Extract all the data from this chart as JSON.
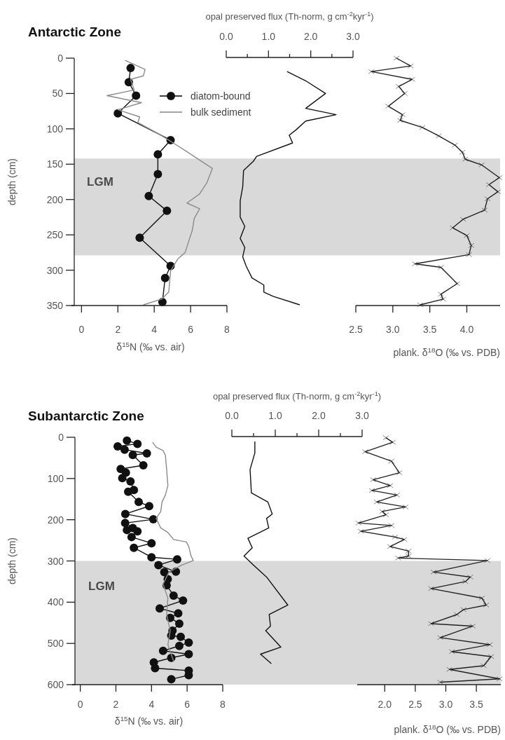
{
  "chart_data": [
    {
      "type": "line",
      "title": "Antarctic Zone",
      "xlabel": "δ$^{15}$N (‰ vs. air)",
      "ylabel": "depth (cm)",
      "xlim": [
        -0.4,
        8
      ],
      "xticks": [
        0,
        2,
        4,
        6,
        8
      ],
      "ylim": [
        350,
        0
      ],
      "yticks": [
        0,
        50,
        100,
        150,
        200,
        250,
        300,
        350
      ],
      "legend": "top right",
      "bands": [
        {
          "axis": "y",
          "from": 142,
          "to": 279,
          "label": "LGM",
          "color": "#d9d9d9"
        }
      ],
      "series": [
        {
          "name": "diatom-bound",
          "color": "#111111",
          "marker": "circle",
          "x": [
            2.7,
            2.6,
            3.0,
            2.0,
            4.9,
            4.2,
            4.2,
            3.7,
            4.7,
            3.2,
            4.9,
            4.6,
            4.45
          ],
          "values": [
            14,
            34,
            53,
            78,
            116,
            136,
            164,
            195,
            216,
            254,
            294,
            311,
            345
          ]
        },
        {
          "name": "bulk sediment",
          "color": "#8c8c8c",
          "marker": "none",
          "x": [
            2.4,
            3.5,
            3.4,
            2.7,
            2.9,
            1.4,
            3.3,
            2.0,
            3.2,
            3.1,
            4.3,
            5.6,
            7.2,
            6.9,
            6.5,
            5.8,
            6.5,
            6.2,
            6.1,
            5.7,
            5.3,
            4.9,
            4.8,
            4.4,
            3.4
          ],
          "values": [
            3,
            16,
            25,
            30,
            45,
            53,
            63,
            73,
            83,
            91,
            108,
            129,
            156,
            176,
            192,
            205,
            213,
            227,
            243,
            275,
            284,
            301,
            331,
            341,
            349
          ]
        }
      ]
    },
    {
      "type": "line",
      "xlabel": "opal preserved flux (Th-norm, g cm$^{-2}$kyr$^{-1}$)",
      "xlim": [
        0,
        3
      ],
      "xticks": [
        {
          "value": 0,
          "label": "0.0"
        },
        {
          "value": 0.5,
          "label": null
        },
        {
          "value": 1,
          "label": "1.0"
        },
        {
          "value": 1.5,
          "label": null
        },
        {
          "value": 2,
          "label": "2.0"
        },
        {
          "value": 2.5,
          "label": null
        },
        {
          "value": 3,
          "label": "3.0"
        }
      ],
      "ylim": [
        350,
        0
      ],
      "tick_labels": "x",
      "bands": [
        {
          "axis": "y",
          "from": 142,
          "to": 279,
          "color": "#d9d9d9"
        }
      ],
      "series": [
        {
          "color": "#111111",
          "marker": "none",
          "x": [
            1.44,
            1.88,
            2.35,
            1.88,
            2.6,
            1.88,
            1.66,
            1.49,
            1.57,
            0.72,
            0.64,
            0.41,
            0.39,
            0.33,
            0.33,
            0.44,
            0.33,
            0.44,
            0.39,
            0.47,
            0.61,
            0.89,
            0.89,
            1.11,
            1.74
          ],
          "values": [
            19,
            32,
            50,
            71,
            80,
            89,
            101,
            109,
            120,
            139,
            146,
            159,
            182,
            202,
            225,
            238,
            255,
            268,
            281,
            294,
            311,
            321,
            331,
            337,
            349
          ]
        }
      ]
    },
    {
      "type": "line",
      "xlabel": "plank. δ$^{18}$O (‰ vs. PDB)",
      "xlim": [
        2.5,
        4.45
      ],
      "xticks": [
        {
          "value": 2.5,
          "label": "2.5"
        },
        {
          "value": 3,
          "label": "3.0"
        },
        {
          "value": 3.5,
          "label": "3.5"
        },
        {
          "value": 4,
          "label": "4.0"
        }
      ],
      "ylim": [
        350,
        0
      ],
      "tick_labels": "x",
      "bands": [
        {
          "axis": "y",
          "from": 142,
          "to": 279,
          "color": "#d9d9d9"
        }
      ],
      "series": [
        {
          "color": "#222222",
          "marker": "cross",
          "x": [
            3.05,
            3.24,
            2.71,
            3.26,
            3.08,
            3.16,
            2.94,
            3.13,
            3.1,
            3.4,
            3.62,
            3.84,
            3.94,
            3.98,
            4.2,
            4.44,
            4.3,
            4.42,
            4.28,
            4.24,
            3.95,
            3.81,
            4.0,
            4.06,
            4.03,
            3.3,
            3.65,
            3.87,
            3.65,
            3.68,
            3.37
          ],
          "values": [
            0,
            11,
            19,
            30,
            40,
            50,
            68,
            80,
            88,
            98,
            110,
            123,
            133,
            143,
            151,
            169,
            179,
            189,
            199,
            215,
            228,
            240,
            251,
            265,
            278,
            291,
            296,
            319,
            334,
            341,
            349
          ]
        }
      ]
    },
    {
      "type": "line",
      "title": "Subantarctic Zone",
      "xlabel": "δ$^{15}$N (‰ vs. air)",
      "ylabel": "depth (cm)",
      "xlim": [
        -0.3,
        8
      ],
      "xticks": [
        0,
        2,
        4,
        6,
        8
      ],
      "ylim": [
        600,
        0
      ],
      "yticks": [
        0,
        100,
        200,
        300,
        400,
        500,
        600
      ],
      "bands": [
        {
          "axis": "y",
          "from": 300,
          "to": 600,
          "label": "LGM",
          "color": "#d9d9d9"
        }
      ],
      "series": [
        {
          "color": "#111111",
          "marker": "circle",
          "x": [
            2.62,
            3.21,
            2.1,
            2.49,
            3.74,
            2.95,
            3.54,
            2.27,
            2.56,
            2.36,
            2.82,
            3.01,
            2.69,
            3.28,
            3.87,
            2.53,
            4.1,
            2.52,
            2.95,
            2.62,
            3.21,
            2.88,
            4.0,
            3.01,
            4.0,
            5.44,
            4.39,
            5.37,
            4.72,
            4.91,
            4.85,
            5.24,
            5.77,
            4.46,
            5.5,
            5.05,
            5.56,
            5.18,
            5.11,
            5.64,
            6.09,
            5.56,
            4.65,
            6.09,
            5.11,
            4.13,
            4.2,
            6.09,
            6.09,
            5.11
          ],
          "values": [
            8,
            16,
            22,
            30,
            39,
            43,
            68,
            77,
            86,
            99,
            107,
            128,
            132,
            157,
            167,
            186,
            199,
            208,
            220,
            225,
            228,
            242,
            257,
            268,
            291,
            296,
            310,
            326,
            327,
            344,
            359,
            384,
            396,
            415,
            427,
            438,
            452,
            469,
            481,
            484,
            498,
            506,
            518,
            526,
            535,
            546,
            560,
            566,
            577,
            587
          ]
        },
        {
          "color": "#8c8c8c",
          "marker": "none",
          "x": [
            4.06,
            4.26,
            4.65,
            4.78,
            4.85,
            4.92,
            4.78,
            4.59,
            4.52,
            4.26,
            4.52,
            4.92,
            5.24,
            5.96,
            6.09,
            6.22,
            6.35,
            5.7,
            4.98,
            4.65,
            4.92,
            4.85,
            5.05,
            4.92,
            5.24
          ],
          "values": [
            12,
            24,
            32,
            44,
            78,
            117,
            140,
            157,
            180,
            197,
            220,
            231,
            248,
            254,
            265,
            288,
            299,
            310,
            327,
            356,
            390,
            430,
            469,
            503,
            543
          ]
        }
      ]
    },
    {
      "type": "line",
      "xlabel": "opal preserved flux (Th-norm, g cm$^{-2}$kyr$^{-1}$)",
      "xlim": [
        0,
        3
      ],
      "xticks": [
        {
          "value": 0,
          "label": "0.0"
        },
        {
          "value": 0.5,
          "label": null
        },
        {
          "value": 1,
          "label": "1.0"
        },
        {
          "value": 1.5,
          "label": null
        },
        {
          "value": 2,
          "label": "2.0"
        },
        {
          "value": 2.5,
          "label": null
        },
        {
          "value": 3,
          "label": "3.0"
        }
      ],
      "ylim": [
        600,
        0
      ],
      "tick_labels": "x",
      "bands": [
        {
          "axis": "y",
          "from": 300,
          "to": 600,
          "color": "#d9d9d9"
        }
      ],
      "series": [
        {
          "color": "#111111",
          "marker": "none",
          "x": [
            0.53,
            0.53,
            0.42,
            0.45,
            0.83,
            0.93,
            0.8,
            0.85,
            0.37,
            0.47,
            0.28,
            0.5,
            0.8,
            1.29,
            0.86,
            0.89,
            0.78,
            1.13,
            0.66,
            0.91
          ],
          "values": [
            10,
            38,
            78,
            135,
            157,
            186,
            197,
            220,
            245,
            268,
            288,
            310,
            339,
            407,
            430,
            458,
            469,
            509,
            526,
            549
          ]
        }
      ]
    },
    {
      "type": "line",
      "xlabel": "plank. δ$^{18}$O (‰ vs. PDB)",
      "xlim": [
        1.55,
        3.9
      ],
      "xticks": [
        {
          "value": 2,
          "label": "2.0"
        },
        {
          "value": 2.5,
          "label": "2.5"
        },
        {
          "value": 3,
          "label": "3.0"
        },
        {
          "value": 3.5,
          "label": "3.5"
        }
      ],
      "ylim": [
        600,
        0
      ],
      "tick_labels": "x",
      "bands": [
        {
          "axis": "y",
          "from": 300,
          "to": 600,
          "color": "#d9d9d9"
        }
      ],
      "series": [
        {
          "color": "#222222",
          "marker": "cross",
          "x": [
            2.02,
            2.13,
            1.68,
            2.11,
            2.24,
            1.81,
            2.09,
            1.79,
            2.2,
            1.87,
            2.34,
            1.96,
            2.02,
            1.57,
            2.11,
            1.61,
            2.17,
            2.32,
            2.09,
            2.39,
            2.39,
            2.22,
            3.68,
            2.8,
            3.4,
            3.32,
            2.76,
            3.59,
            3.66,
            3.29,
            3.18,
            2.76,
            3.44,
            2.91,
            3.72,
            3.1,
            3.74,
            3.62,
            3.06,
            3.88,
            2.91
          ],
          "values": [
            1,
            12,
            35,
            58,
            86,
            103,
            117,
            129,
            140,
            157,
            169,
            180,
            188,
            208,
            214,
            228,
            242,
            248,
            265,
            276,
            288,
            293,
            299,
            327,
            339,
            350,
            367,
            390,
            407,
            418,
            430,
            452,
            458,
            486,
            503,
            520,
            532,
            554,
            563,
            586,
            594
          ]
        }
      ]
    }
  ]
}
